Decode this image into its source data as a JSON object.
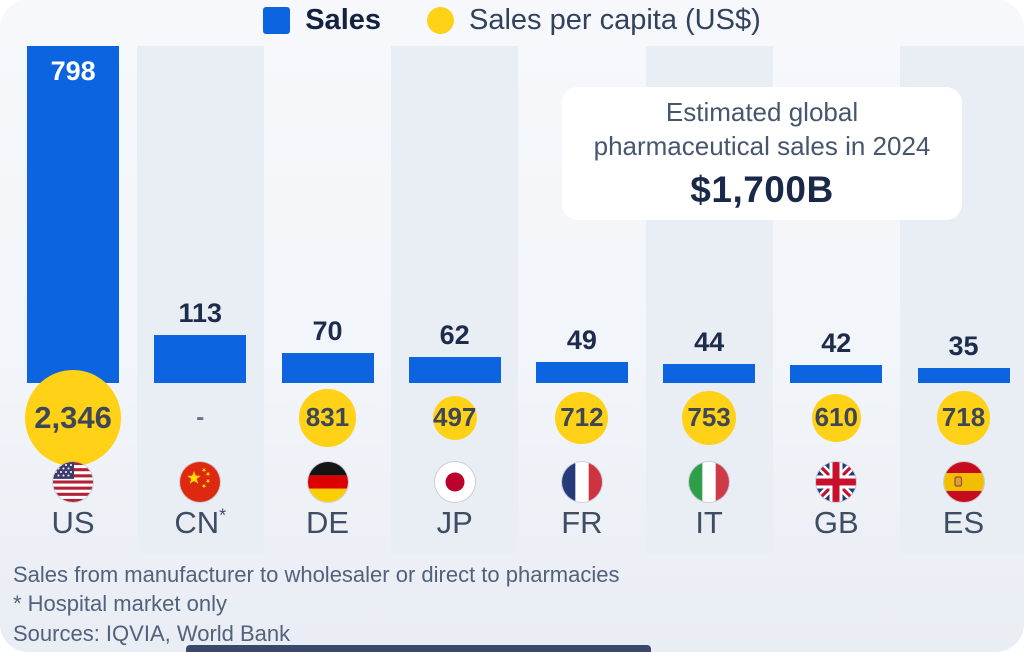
{
  "legend": {
    "items": [
      {
        "label": "Sales",
        "marker": "square",
        "color": "#0c64e0"
      },
      {
        "label": "Sales per capita (US$)",
        "marker": "circle",
        "color": "#ffd117"
      }
    ]
  },
  "callout": {
    "text": "Estimated global pharmaceutical sales in 2024",
    "value": "$1,700B"
  },
  "footnotes": {
    "line1": "Sales from manufacturer to wholesaler or direct to pharmacies",
    "line2": "* Hospital market only"
  },
  "sources": "Sources: IQVIA, World Bank",
  "colors": {
    "bar_blue": "#0c64e0",
    "capita_yellow": "#ffd117",
    "stripe": "#e9edf4",
    "navy_text": "#1a2947",
    "slate_text": "#47566f",
    "footer_text": "#52617c",
    "accent_bar": "#3a486b"
  },
  "chart_data": {
    "type": "bar",
    "title": "",
    "categories": [
      "US",
      "CN",
      "DE",
      "JP",
      "FR",
      "IT",
      "GB",
      "ES"
    ],
    "category_notes": [
      "",
      "*",
      "",
      "",
      "",
      "",
      "",
      ""
    ],
    "series": [
      {
        "name": "Sales",
        "values": [
          798,
          113,
          70,
          62,
          49,
          44,
          42,
          35
        ],
        "color": "#0c64e0",
        "marker": "square"
      },
      {
        "name": "Sales per capita (US$)",
        "values": [
          2346,
          null,
          831,
          497,
          712,
          753,
          610,
          718
        ],
        "display": [
          "2,346",
          "-",
          "831",
          "497",
          "712",
          "753",
          "610",
          "718"
        ],
        "color": "#ffd117",
        "marker": "circle"
      }
    ],
    "annotations": [
      "Estimated global pharmaceutical sales in 2024: $1,700B"
    ],
    "legend_position": "top",
    "grid": false,
    "axes_visible": false,
    "ylim": [
      0,
      798
    ]
  }
}
